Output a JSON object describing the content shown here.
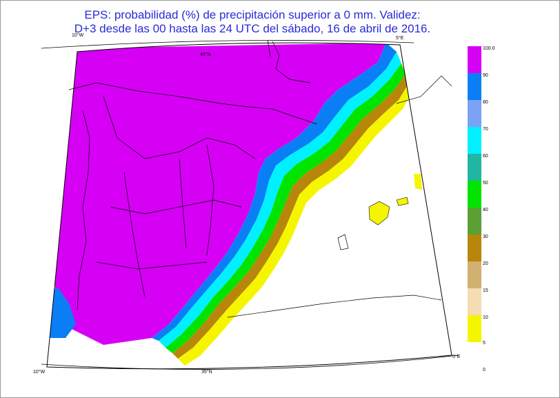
{
  "title": {
    "line1": "EPS: probabilidad (%) de precipitación superior a 0 mm.  Validez:",
    "line2": "D+3 desde las 00 hasta las 24 UTC del sábado, 16 de abril de 2016."
  },
  "graticule": {
    "lat_top": "45°N",
    "lat_bottom": "35°N",
    "lon_left_top": "10°W",
    "lon_left_bottom": "10°W",
    "lon_right_top": "5°E",
    "lon_right_bottom": "5°E"
  },
  "legend": {
    "ticks": [
      "100.0",
      "90",
      "80",
      "70",
      "60",
      "50",
      "40",
      "30",
      "20",
      "15",
      "10",
      "5",
      "0"
    ],
    "colors": [
      "#d600f5",
      "#0a7ff5",
      "#7aa2f5",
      "#00f0ff",
      "#1fb7a1",
      "#00e400",
      "#5aa034",
      "#b8860b",
      "#d2b06f",
      "#f5dcb4",
      "#f5f500"
    ]
  },
  "colors": {
    "title": "#2a2ad8",
    "land_high": "#d600f5",
    "sea": "#ffffff"
  }
}
